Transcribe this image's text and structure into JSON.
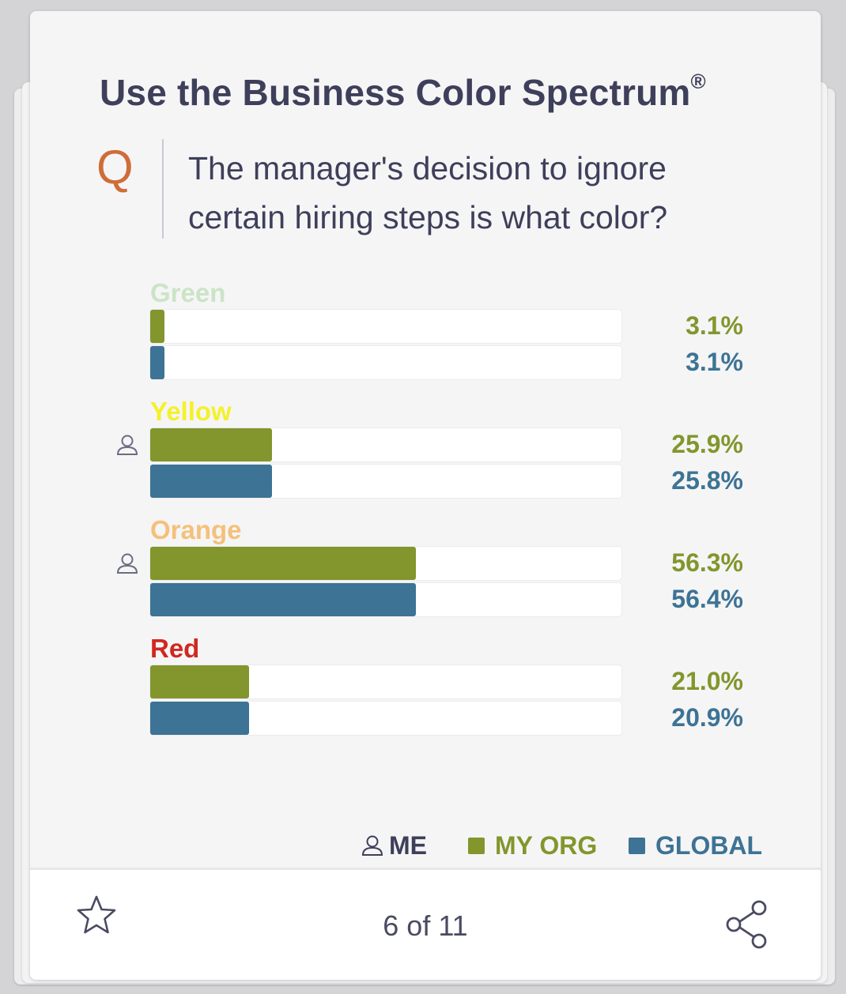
{
  "card": {
    "title": "Use the Business Color Spectrum",
    "registered_mark": "®",
    "question_letter": "Q",
    "question_text": "The manager's decision to ignore certain hiring steps is what color?"
  },
  "colors": {
    "my_org": "#82962d",
    "global": "#3d7394",
    "title": "#3e3f5a",
    "q_letter": "#cf6d38"
  },
  "chart_data": {
    "type": "bar",
    "orientation": "horizontal",
    "categories": [
      "Green",
      "Yellow",
      "Orange",
      "Red"
    ],
    "category_colors": [
      "#cce4c6",
      "#f4f12a",
      "#f5c07a",
      "#d0281f"
    ],
    "series": [
      {
        "name": "MY ORG",
        "values": [
          3.1,
          25.9,
          56.3,
          21.0
        ],
        "labels": [
          "3.1%",
          "25.9%",
          "56.3%",
          "21.0%"
        ]
      },
      {
        "name": "GLOBAL",
        "values": [
          3.1,
          25.8,
          56.4,
          20.9
        ],
        "labels": [
          "3.1%",
          "25.8%",
          "56.4%",
          "20.9%"
        ]
      }
    ],
    "me_marked": [
      false,
      true,
      true,
      false
    ],
    "xlim": [
      0,
      100
    ]
  },
  "legend": {
    "me": "ME",
    "my_org": "MY ORG",
    "global": "GLOBAL"
  },
  "footer": {
    "pager": "6 of 11",
    "star_icon": "star-outline-icon",
    "share_icon": "share-icon"
  }
}
